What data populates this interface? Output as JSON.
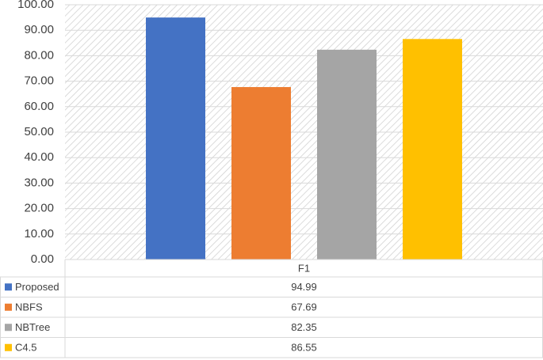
{
  "chart_data": {
    "type": "bar",
    "categories": [
      "F1"
    ],
    "series": [
      {
        "name": "Proposed",
        "color": "#4472c4",
        "values": [
          94.99
        ]
      },
      {
        "name": "NBFS",
        "color": "#ed7d31",
        "values": [
          67.69
        ]
      },
      {
        "name": "NBTree",
        "color": "#a5a5a5",
        "values": [
          82.35
        ]
      },
      {
        "name": "C4.5",
        "color": "#ffc000",
        "values": [
          86.55
        ]
      }
    ],
    "ylim": [
      0,
      100
    ],
    "yticks": [
      {
        "value": 0,
        "label": "0.00"
      },
      {
        "value": 10,
        "label": "10.00"
      },
      {
        "value": 20,
        "label": "20.00"
      },
      {
        "value": 30,
        "label": "30.00"
      },
      {
        "value": 40,
        "label": "40.00"
      },
      {
        "value": 50,
        "label": "50.00"
      },
      {
        "value": 60,
        "label": "60.00"
      },
      {
        "value": 70,
        "label": "70.00"
      },
      {
        "value": 80,
        "label": "80.00"
      },
      {
        "value": 90,
        "label": "90.00"
      },
      {
        "value": 100,
        "label": "100.00"
      }
    ],
    "grid": true,
    "data_table": true
  }
}
